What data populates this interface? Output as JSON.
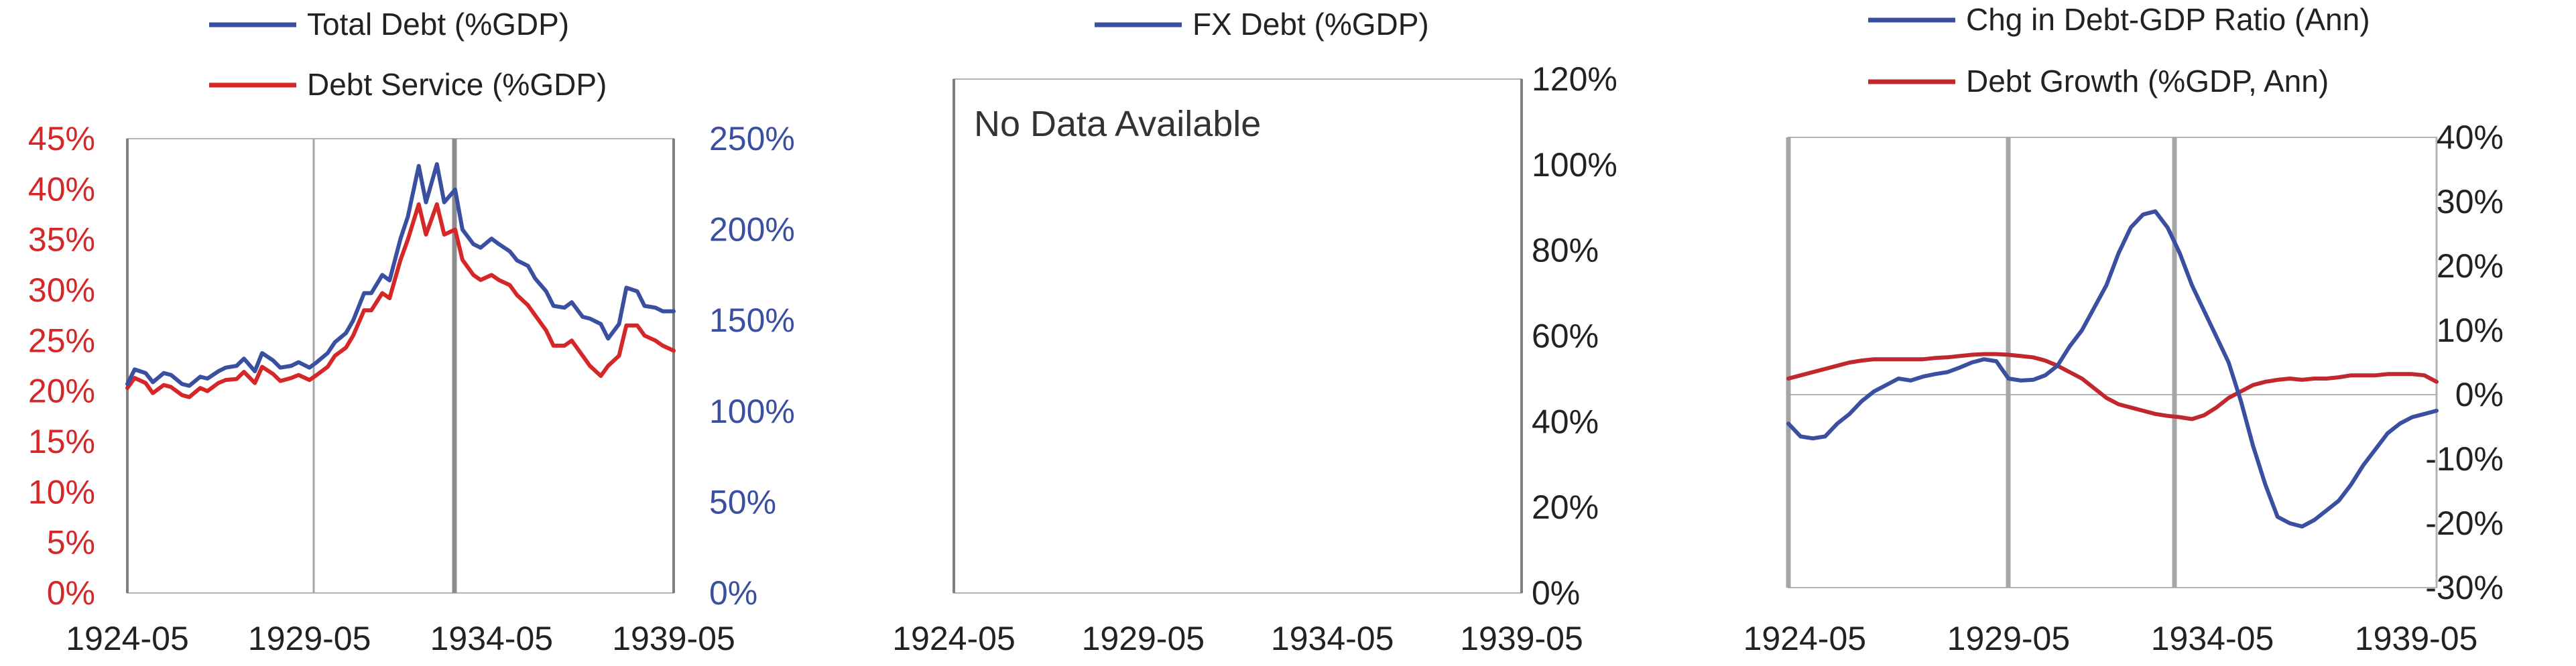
{
  "chart_data": [
    {
      "type": "line",
      "x_ticks": [
        "1924-05",
        "1929-05",
        "1934-05",
        "1939-05"
      ],
      "y_left": {
        "ticks": [
          "0%",
          "5%",
          "10%",
          "15%",
          "20%",
          "25%",
          "30%",
          "35%",
          "40%",
          "45%"
        ],
        "range": [
          0,
          45
        ],
        "color": "#d62728"
      },
      "y_right": {
        "ticks": [
          "0%",
          "50%",
          "100%",
          "150%",
          "200%",
          "250%"
        ],
        "range": [
          0,
          250
        ],
        "color": "#3a4fa0"
      },
      "legend": [
        "Total Debt (%GDP)",
        "Debt Service (%GDP)"
      ],
      "series": [
        {
          "name": "Total Debt (%GDP)",
          "axis": "right",
          "color": "#3a4fa0",
          "x": [
            1924.4,
            1924.6,
            1924.9,
            1925.1,
            1925.4,
            1925.6,
            1925.9,
            1926.1,
            1926.4,
            1926.6,
            1926.9,
            1927.1,
            1927.4,
            1927.6,
            1927.9,
            1928.1,
            1928.4,
            1928.6,
            1928.9,
            1929.1,
            1929.4,
            1929.6,
            1929.9,
            1930.1,
            1930.4,
            1930.6,
            1930.9,
            1931.1,
            1931.4,
            1931.6,
            1931.9,
            1932.1,
            1932.4,
            1932.6,
            1932.9,
            1933.1,
            1933.4,
            1933.6,
            1933.9,
            1934.1,
            1934.4,
            1934.6,
            1934.9,
            1935.1,
            1935.4,
            1935.6,
            1935.9,
            1936.1,
            1936.4,
            1936.6,
            1936.9,
            1937.1,
            1937.4,
            1937.6,
            1937.9,
            1938.1,
            1938.4,
            1938.6,
            1938.9,
            1939.1,
            1939.4
          ],
          "values": [
            115,
            123,
            121,
            116,
            121,
            120,
            115,
            114,
            119,
            118,
            122,
            124,
            125,
            129,
            122,
            132,
            128,
            124,
            125,
            127,
            124,
            127,
            132,
            138,
            143,
            150,
            165,
            165,
            175,
            172,
            195,
            207,
            235,
            215,
            236,
            215,
            222,
            200,
            192,
            190,
            195,
            192,
            188,
            183,
            180,
            173,
            166,
            158,
            157,
            160,
            152,
            151,
            148,
            140,
            148,
            168,
            166,
            158,
            157,
            155,
            155
          ]
        },
        {
          "name": "Debt Service (%GDP)",
          "axis": "left",
          "color": "#d62728",
          "x": [
            1924.4,
            1924.6,
            1924.9,
            1925.1,
            1925.4,
            1925.6,
            1925.9,
            1926.1,
            1926.4,
            1926.6,
            1926.9,
            1927.1,
            1927.4,
            1927.6,
            1927.9,
            1928.1,
            1928.4,
            1928.6,
            1928.9,
            1929.1,
            1929.4,
            1929.6,
            1929.9,
            1930.1,
            1930.4,
            1930.6,
            1930.9,
            1931.1,
            1931.4,
            1931.6,
            1931.9,
            1932.1,
            1932.4,
            1932.6,
            1932.9,
            1933.1,
            1933.4,
            1933.6,
            1933.9,
            1934.1,
            1934.4,
            1934.6,
            1934.9,
            1935.1,
            1935.4,
            1935.6,
            1935.9,
            1936.1,
            1936.4,
            1936.6,
            1936.9,
            1937.1,
            1937.4,
            1937.6,
            1937.9,
            1938.1,
            1938.4,
            1938.6,
            1938.9,
            1939.1,
            1939.4
          ],
          "values": [
            20.3,
            21.3,
            20.8,
            19.8,
            20.6,
            20.4,
            19.6,
            19.4,
            20.3,
            20.0,
            20.8,
            21.1,
            21.2,
            21.9,
            20.8,
            22.4,
            21.7,
            21.0,
            21.3,
            21.6,
            21.1,
            21.6,
            22.4,
            23.5,
            24.3,
            25.5,
            28.0,
            28.0,
            29.7,
            29.2,
            33.0,
            35.0,
            38.5,
            35.5,
            38.5,
            35.5,
            36.0,
            33.0,
            31.5,
            31.0,
            31.5,
            31.0,
            30.5,
            29.5,
            28.5,
            27.5,
            26.0,
            24.5,
            24.5,
            25.0,
            23.5,
            22.5,
            21.5,
            22.5,
            23.5,
            26.5,
            26.5,
            25.5,
            25.0,
            24.5,
            24.0
          ]
        }
      ]
    },
    {
      "type": "line",
      "x_ticks": [
        "1924-05",
        "1929-05",
        "1934-05",
        "1939-05"
      ],
      "y_right": {
        "ticks": [
          "0%",
          "20%",
          "40%",
          "60%",
          "80%",
          "100%",
          "120%"
        ],
        "range": [
          0,
          120
        ],
        "color": "#222222"
      },
      "legend": [
        "FX Debt (%GDP)"
      ],
      "series": [
        {
          "name": "FX Debt (%GDP)",
          "axis": "right",
          "color": "#3a4fa0",
          "x": [],
          "values": []
        }
      ],
      "annotation": "No Data Available"
    },
    {
      "type": "line",
      "x_ticks": [
        "1924-05",
        "1929-05",
        "1934-05",
        "1939-05"
      ],
      "y_right": {
        "ticks": [
          "-30%",
          "-20%",
          "-10%",
          "0%",
          "10%",
          "20%",
          "30%",
          "40%"
        ],
        "range": [
          -30,
          40
        ],
        "color": "#222222"
      },
      "legend": [
        "Chg in Debt-GDP Ratio (Ann)",
        "Debt Growth (%GDP, Ann)"
      ],
      "series": [
        {
          "name": "Chg in Debt-GDP Ratio (Ann)",
          "axis": "right",
          "color": "#3a4fa0",
          "x": [
            1924.0,
            1924.3,
            1924.6,
            1924.9,
            1925.2,
            1925.5,
            1925.8,
            1926.1,
            1926.4,
            1926.7,
            1927.0,
            1927.3,
            1927.6,
            1927.9,
            1928.2,
            1928.5,
            1928.8,
            1929.1,
            1929.4,
            1929.7,
            1930.0,
            1930.3,
            1930.6,
            1930.9,
            1931.2,
            1931.5,
            1931.8,
            1932.1,
            1932.4,
            1932.7,
            1933.0,
            1933.3,
            1933.6,
            1933.9,
            1934.2,
            1934.5,
            1934.8,
            1935.1,
            1935.4,
            1935.7,
            1936.0,
            1936.3,
            1936.6,
            1936.9,
            1937.2,
            1937.5,
            1937.8,
            1938.1,
            1938.4,
            1938.7,
            1939.0,
            1939.3,
            1939.6,
            1939.9
          ],
          "values": [
            -4.5,
            -6.5,
            -6.8,
            -6.5,
            -4.5,
            -3,
            -1,
            0.5,
            1.5,
            2.5,
            2.2,
            2.8,
            3.2,
            3.5,
            4.2,
            5,
            5.5,
            5.2,
            2.5,
            2.2,
            2.3,
            3,
            4.5,
            7.5,
            10,
            13.5,
            17,
            22,
            26,
            28,
            28.5,
            26,
            22,
            17,
            13,
            9,
            5,
            -1,
            -8,
            -14,
            -19,
            -20,
            -20.5,
            -19.5,
            -18,
            -16.5,
            -14,
            -11,
            -8.5,
            -6,
            -4.5,
            -3.5,
            -3,
            -2.5
          ]
        },
        {
          "name": "Debt Growth (%GDP, Ann)",
          "axis": "right",
          "color": "#c0282d",
          "x": [
            1924.0,
            1924.3,
            1924.6,
            1924.9,
            1925.2,
            1925.5,
            1925.8,
            1926.1,
            1926.4,
            1926.7,
            1927.0,
            1927.3,
            1927.6,
            1927.9,
            1928.2,
            1928.5,
            1928.8,
            1929.1,
            1929.4,
            1929.7,
            1930.0,
            1930.3,
            1930.6,
            1930.9,
            1931.2,
            1931.5,
            1931.8,
            1932.1,
            1932.4,
            1932.7,
            1933.0,
            1933.3,
            1933.6,
            1933.9,
            1934.2,
            1934.5,
            1934.8,
            1935.1,
            1935.4,
            1935.7,
            1936.0,
            1936.3,
            1936.6,
            1936.9,
            1937.2,
            1937.5,
            1937.8,
            1938.1,
            1938.4,
            1938.7,
            1939.0,
            1939.3,
            1939.6,
            1939.9
          ],
          "values": [
            2.5,
            3,
            3.5,
            4,
            4.5,
            5,
            5.3,
            5.5,
            5.5,
            5.5,
            5.5,
            5.5,
            5.7,
            5.8,
            6,
            6.2,
            6.3,
            6.3,
            6.2,
            6,
            5.8,
            5.3,
            4.5,
            3.5,
            2.5,
            1,
            -0.5,
            -1.5,
            -2,
            -2.5,
            -3,
            -3.3,
            -3.5,
            -3.8,
            -3.2,
            -2,
            -0.5,
            0.5,
            1.5,
            2,
            2.3,
            2.5,
            2.3,
            2.5,
            2.5,
            2.7,
            3,
            3,
            3,
            3.2,
            3.2,
            3.2,
            3,
            2
          ]
        }
      ]
    }
  ]
}
